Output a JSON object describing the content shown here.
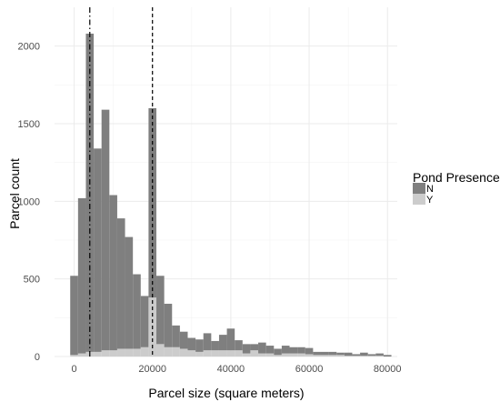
{
  "chart_data": {
    "type": "bar",
    "subtype": "stacked-histogram",
    "xlabel": "Parcel size (square meters)",
    "ylabel": "Parcel count",
    "xlim": [
      -5000,
      82500
    ],
    "ylim": [
      0,
      2250
    ],
    "x_ticks": [
      "0",
      "20000",
      "40000",
      "60000",
      "80000"
    ],
    "y_ticks": [
      "0",
      "500",
      "1000",
      "1500",
      "2000"
    ],
    "grid": true,
    "bin_width": 2000,
    "legend": {
      "title": "Pond Presence",
      "position": "right",
      "entries": [
        {
          "label": "N",
          "color": "#7f7f7f"
        },
        {
          "label": "Y",
          "color": "#cccccc"
        }
      ]
    },
    "reference_lines": [
      {
        "x": 4000,
        "style": "dash-dot"
      },
      {
        "x": 20000,
        "style": "dashed"
      }
    ],
    "bins_start": [
      -1000,
      1000,
      3000,
      5000,
      7000,
      9000,
      11000,
      13000,
      15000,
      17000,
      19000,
      21000,
      23000,
      25000,
      27000,
      29000,
      31000,
      33000,
      35000,
      37000,
      39000,
      41000,
      43000,
      45000,
      47000,
      49000,
      51000,
      53000,
      55000,
      57000,
      59000,
      61000,
      63000,
      65000,
      67000,
      69000,
      71000,
      73000,
      75000,
      77000,
      79000
    ],
    "series": [
      {
        "name": "N",
        "values": [
          510,
          1000,
          2050,
          1310,
          1550,
          1000,
          840,
          720,
          480,
          330,
          1220,
          440,
          280,
          140,
          110,
          80,
          80,
          110,
          60,
          100,
          140,
          65,
          60,
          40,
          70,
          50,
          40,
          50,
          40,
          40,
          40,
          20,
          20,
          20,
          15,
          20,
          10,
          20,
          10,
          15,
          10
        ]
      },
      {
        "name": "Y",
        "values": [
          10,
          20,
          30,
          30,
          40,
          40,
          50,
          50,
          50,
          60,
          380,
          80,
          60,
          60,
          50,
          40,
          30,
          40,
          40,
          40,
          40,
          40,
          20,
          40,
          20,
          20,
          10,
          20,
          20,
          20,
          15,
          10,
          10,
          10,
          10,
          5,
          5,
          5,
          5,
          5,
          0
        ]
      }
    ]
  }
}
